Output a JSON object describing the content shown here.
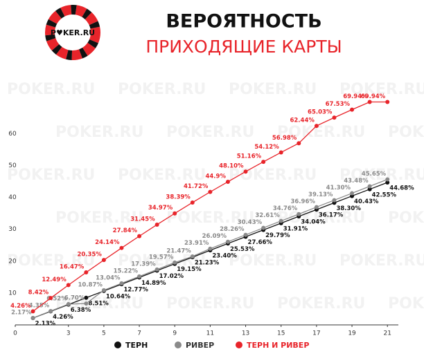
{
  "header": {
    "title": "ВЕРОЯТНОСТЬ",
    "subtitle": "ПРИХОДЯЩИЕ КАРТЫ",
    "logo": "P♥KER.RU"
  },
  "watermark": "POKER.RU",
  "chart_data": {
    "type": "line",
    "x": [
      1,
      2,
      3,
      4,
      5,
      6,
      7,
      8,
      9,
      10,
      11,
      12,
      13,
      14,
      15,
      16,
      17,
      18,
      19,
      20,
      21
    ],
    "xlim": [
      0,
      21.5
    ],
    "xticks": [
      0,
      3,
      5,
      7,
      9,
      11,
      13,
      15,
      17,
      19,
      21
    ],
    "ylim": [
      0,
      72
    ],
    "yticks": [
      10,
      20,
      30,
      40,
      50,
      60
    ],
    "grid": false,
    "series": [
      {
        "name": "ТЕРН",
        "color": "#111111",
        "values": [
          2.13,
          4.26,
          6.38,
          8.51,
          10.64,
          12.77,
          14.89,
          17.02,
          19.15,
          21.23,
          23.4,
          25.53,
          27.66,
          29.79,
          31.91,
          34.04,
          36.17,
          38.3,
          40.43,
          42.55,
          44.68
        ],
        "value_labels": [
          "2.13%",
          "4.26%",
          "6.38%",
          "8.51%",
          "10.64%",
          "12.77%",
          "14.89%",
          "17.02%",
          "19.15%",
          "21.23%",
          "23.40%",
          "25.53%",
          "27.66%",
          "29.79%",
          "31.91%",
          "34.04%",
          "36.17%",
          "38.30%",
          "40.43%",
          "42.55%",
          "44.68%"
        ]
      },
      {
        "name": "РИВЕР",
        "color": "#8a8a8a",
        "values": [
          2.17,
          4.35,
          6.52,
          6.7,
          10.87,
          13.04,
          15.22,
          17.39,
          19.57,
          21.47,
          23.91,
          26.09,
          28.26,
          30.43,
          32.61,
          34.76,
          36.96,
          39.13,
          41.3,
          43.48,
          45.65
        ],
        "value_labels": [
          "2.17%",
          "4.35%",
          "6.52%",
          "6.70%",
          "10.87%",
          "13.04%",
          "15.22%",
          "17.39%",
          "19.57%",
          "21.47%",
          "23.91%",
          "26.09%",
          "28.26%",
          "30.43%",
          "32.61%",
          "34.76%",
          "36.96%",
          "39.13%",
          "41.30%",
          "43.48%",
          "45.65%"
        ]
      },
      {
        "name": "ТЕРН И РИВЕР",
        "color": "#e8242a",
        "values": [
          4.26,
          8.42,
          12.49,
          16.47,
          20.35,
          24.14,
          27.84,
          31.45,
          34.97,
          38.39,
          41.72,
          44.9,
          48.1,
          51.16,
          54.12,
          56.98,
          62.44,
          65.03,
          67.53,
          69.94,
          69.94
        ],
        "value_labels": [
          "4.26%",
          "8.42%",
          "12.49%",
          "16.47%",
          "20.35%",
          "24.14%",
          "27.84%",
          "31.45%",
          "34.97%",
          "38.39%",
          "41.72%",
          "44.9%",
          "48.10%",
          "51.16%",
          "54.12%",
          "56.98%",
          "62.44%",
          "65.03%",
          "67.53%",
          "69.94%",
          "69.94%"
        ]
      }
    ]
  }
}
